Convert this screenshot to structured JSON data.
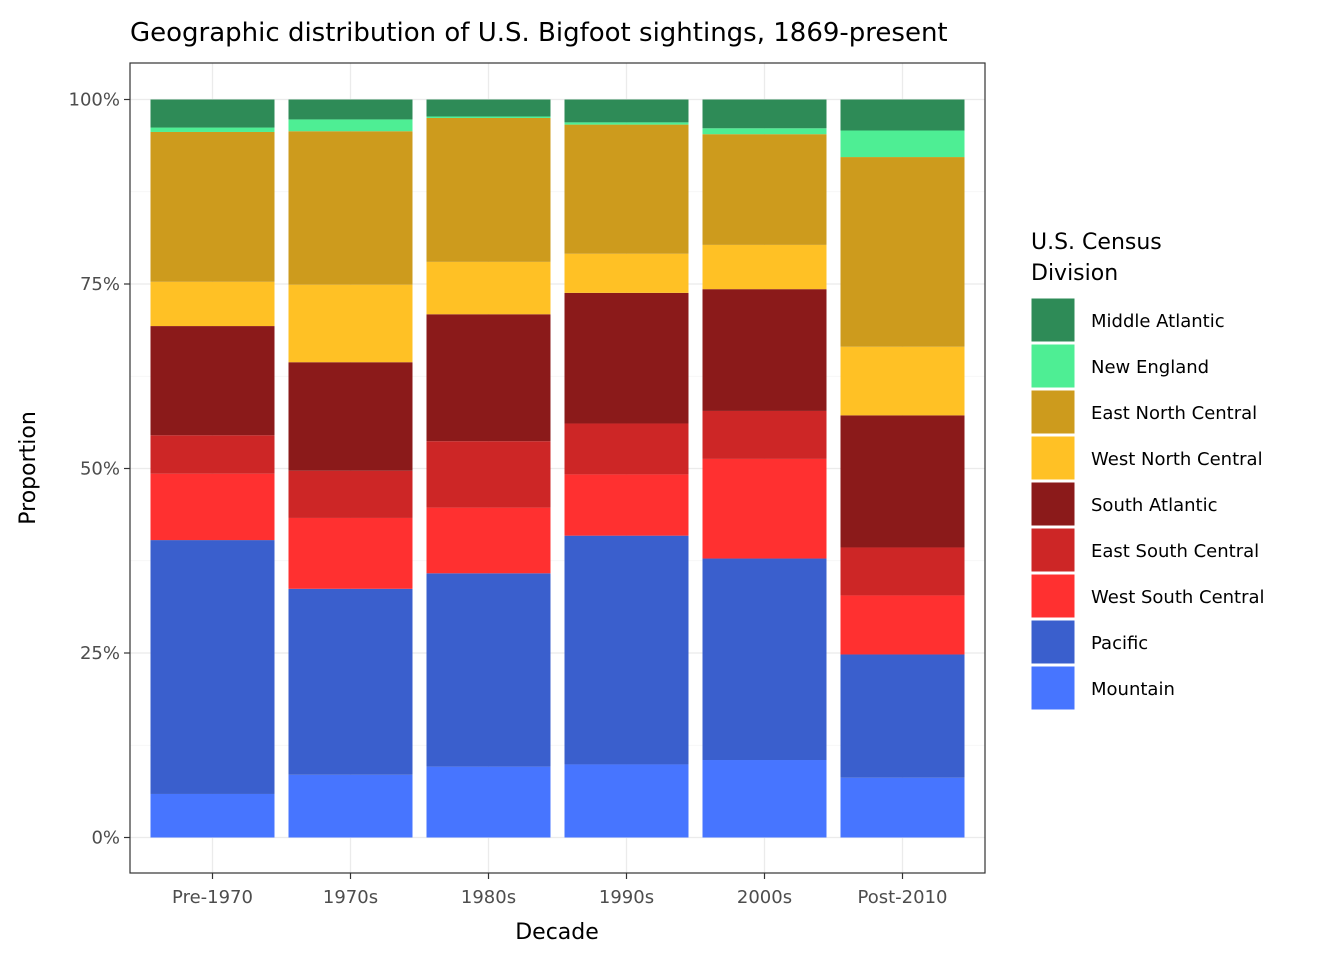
{
  "chart_data": {
    "type": "bar",
    "stacked": true,
    "normalized": true,
    "title": "Geographic distribution of U.S. Bigfoot sightings, 1869-present",
    "xlabel": "Decade",
    "ylabel": "Proportion",
    "ylim": [
      0,
      1
    ],
    "y_ticks": [
      "0%",
      "25%",
      "50%",
      "75%",
      "100%"
    ],
    "grid": true,
    "legend_position": "right",
    "legend_title": "U.S. Census\nDivision",
    "categories": [
      "Pre-1970",
      "1970s",
      "1980s",
      "1990s",
      "2000s",
      "Post-2010"
    ],
    "series": [
      {
        "name": "Mountain",
        "color": "#4775FF",
        "values": [
          0.059,
          0.085,
          0.096,
          0.099,
          0.105,
          0.081
        ]
      },
      {
        "name": "Pacific",
        "color": "#3A5FCD",
        "values": [
          0.344,
          0.252,
          0.262,
          0.31,
          0.273,
          0.167
        ]
      },
      {
        "name": "West South Central",
        "color": "#FF3030",
        "values": [
          0.09,
          0.096,
          0.089,
          0.083,
          0.135,
          0.08
        ]
      },
      {
        "name": "East South Central",
        "color": "#CD2626",
        "values": [
          0.052,
          0.064,
          0.09,
          0.069,
          0.065,
          0.065
        ]
      },
      {
        "name": "South Atlantic",
        "color": "#8B1A1A",
        "values": [
          0.148,
          0.147,
          0.172,
          0.177,
          0.165,
          0.179
        ]
      },
      {
        "name": "West North Central",
        "color": "#FFC125",
        "values": [
          0.06,
          0.105,
          0.071,
          0.053,
          0.06,
          0.093
        ]
      },
      {
        "name": "East North Central",
        "color": "#CD9B1D",
        "values": [
          0.203,
          0.208,
          0.195,
          0.175,
          0.15,
          0.257
        ]
      },
      {
        "name": "New England",
        "color": "#4EEE94",
        "values": [
          0.006,
          0.016,
          0.002,
          0.003,
          0.008,
          0.036
        ]
      },
      {
        "name": "Middle Atlantic",
        "color": "#2E8B57",
        "values": [
          0.038,
          0.027,
          0.023,
          0.031,
          0.039,
          0.042
        ]
      }
    ]
  }
}
